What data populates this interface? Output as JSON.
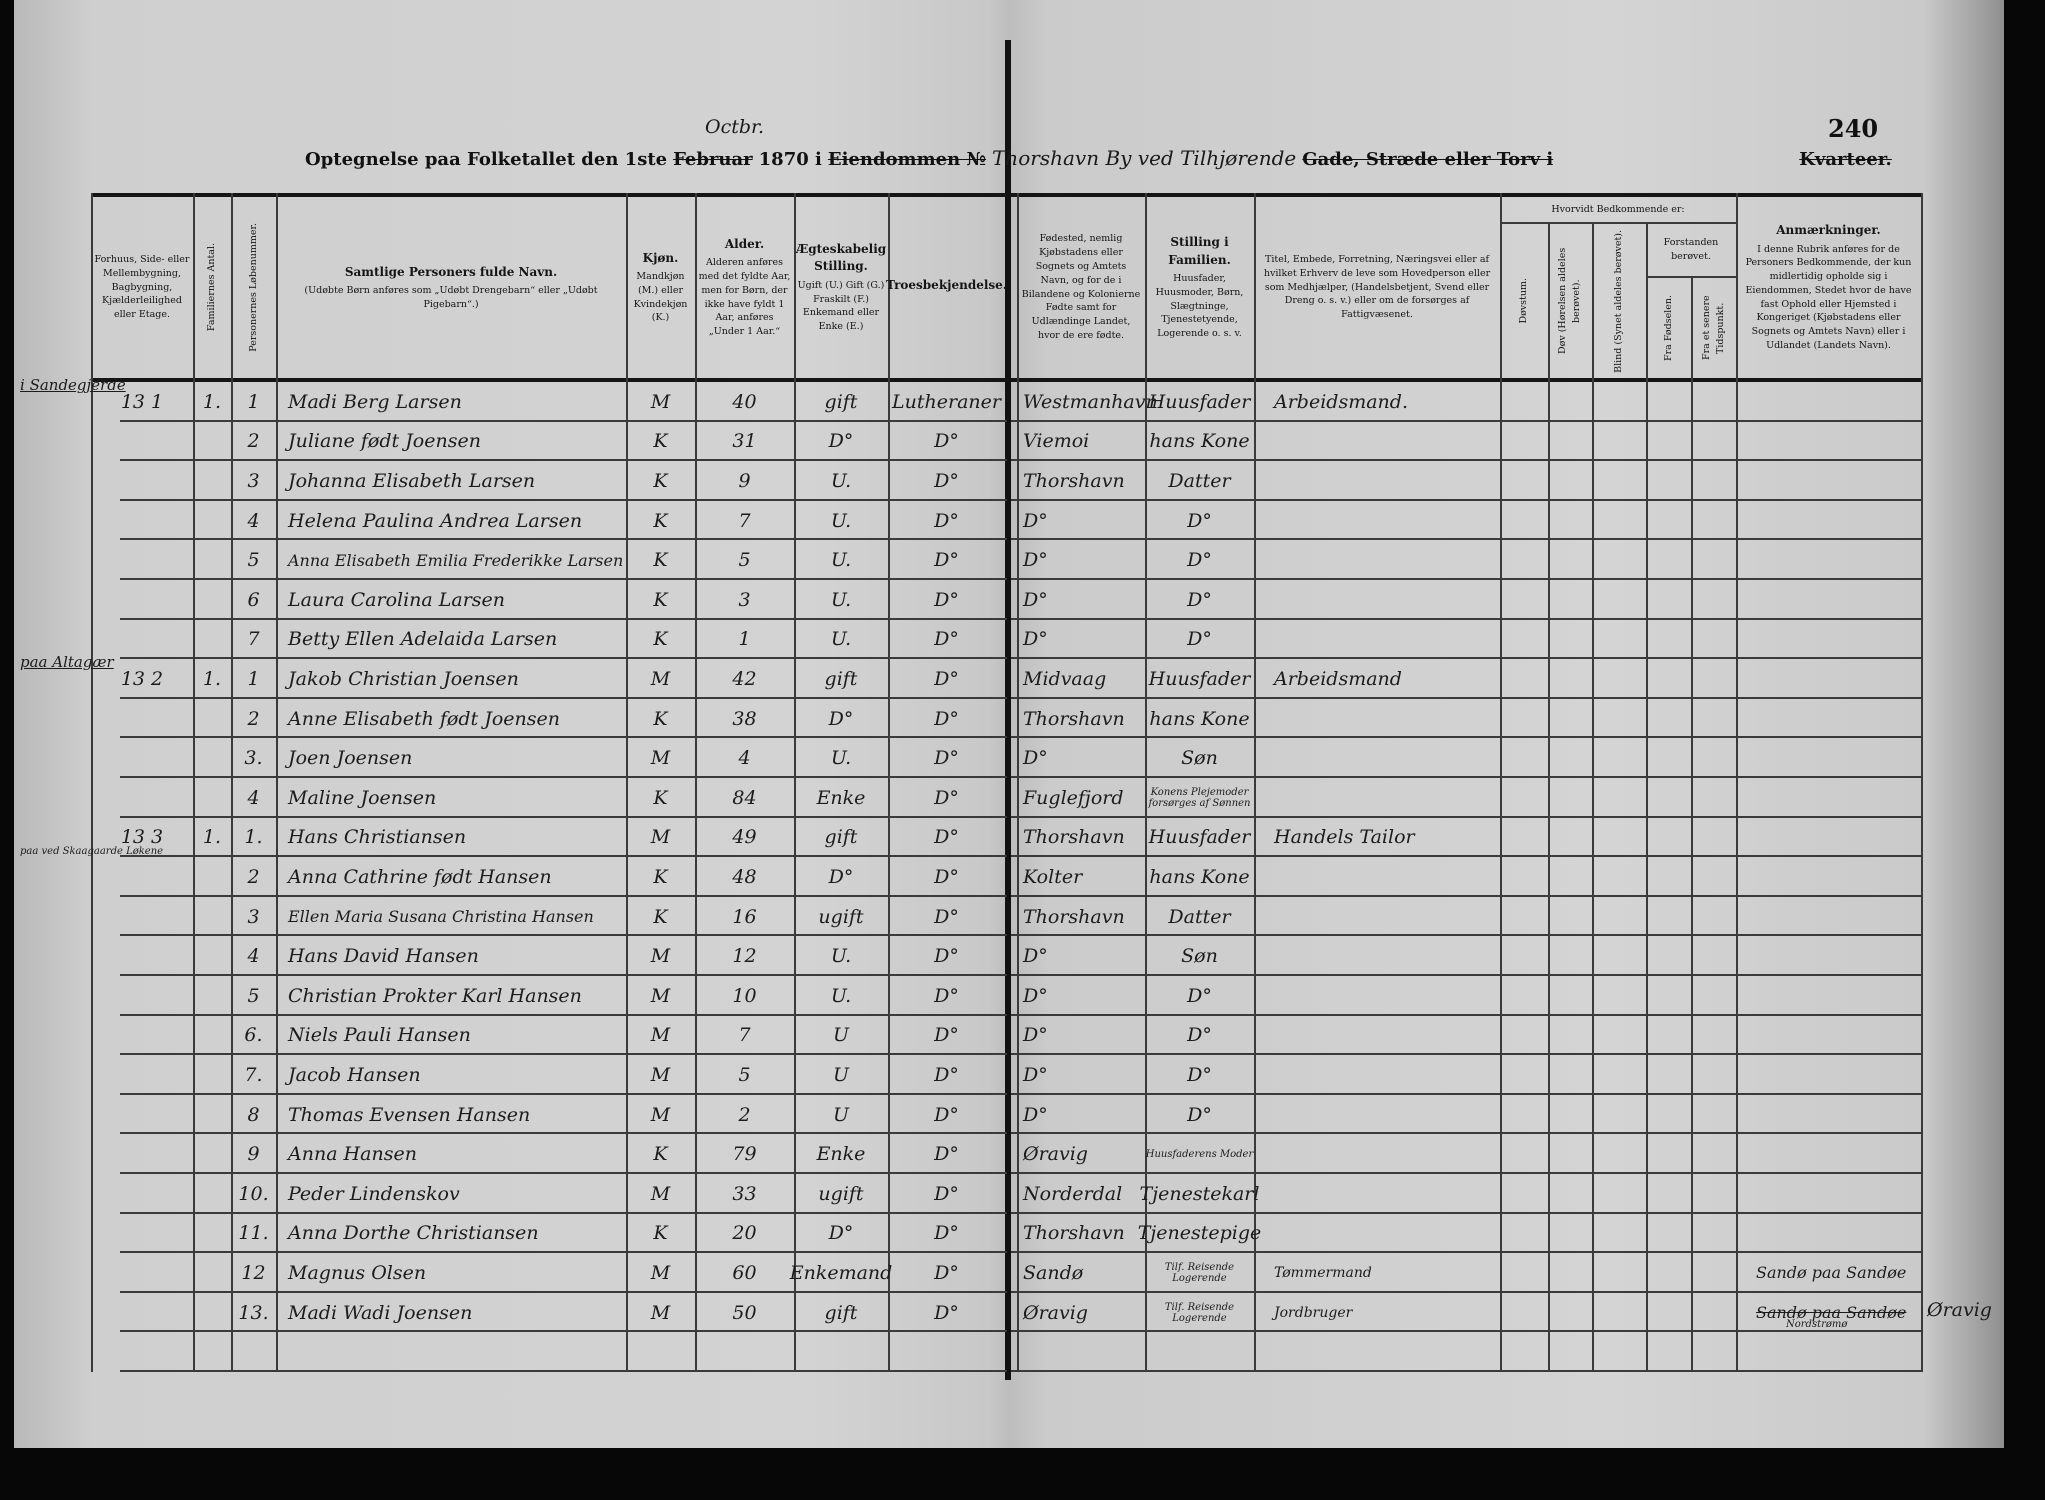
{
  "page_number": "240",
  "title": {
    "prefix": "Optegnelse paa Folketallet den 1ste",
    "month_struck": "Februar",
    "month_written": "Octbr.",
    "year_text": "1870 i",
    "property_struck": "Eiendommen №",
    "property_written": "Thorshavn By ved Tilhjørende",
    "street_label": "Gade, Stræde eller Torv i",
    "quarter_struck": "Kvarteer."
  },
  "headers": {
    "building": "Forhuus, Side- eller Mellembygning, Bagbygning, Kjælderleilighed eller Etage.",
    "families": "Familiernes Antal.",
    "person_no": "Personernes Løbenummer.",
    "name_title": "Samtlige Personers fulde Navn.",
    "name_note": "(Udøbte Børn anføres som „Udøbt Drengebarn“ eller „Udøbt Pigebarn“.)",
    "sex_title": "Kjøn.",
    "sex_note": "Mandkjøn (M.) eller Kvindekjøn (K.)",
    "age_title": "Alder.",
    "age_note": "Alderen anføres med det fyldte Aar, men for Børn, der ikke have fyldt 1 Aar, anføres „Under 1 Aar.“",
    "marital_title": "Ægteskabelig Stilling.",
    "marital_note": "Ugift (U.) Gift (G.) Fraskilt (F.) Enkemand eller Enke (E.)",
    "religion": "Troesbekjendelse.",
    "birthplace": "Fødested, nemlig Kjøbstadens eller Sognets og Amtets Navn, og for de i Bilandene og Kolonierne Fødte samt for Udlændinge Landet, hvor de ere fødte.",
    "position_title": "Stilling i Familien.",
    "position_note": "Huusfader, Huusmoder, Børn, Slægtninge, Tjenestetyende, Logerende o. s. v.",
    "occupation": "Titel, Embede, Forretning, Næringsvei eller af hvilket Erhverv de leve som Hovedperson eller som Medhjælper, (Handelsbetjent, Svend eller Dreng o. s. v.) eller om de forsørges af Fattigvæsenet.",
    "condition_group": "Hvorvidt Bedkommende er:",
    "deafmute": "Døvstum.",
    "deaf": "Døv (Hørelsen aldeles berøvet).",
    "blind": "Blind (Synet aldeles berøvet).",
    "insane_group": "Forstanden berøvet.",
    "insane_birth": "Fra Fødselen.",
    "insane_later": "Fra et senere Tidspunkt.",
    "remarks_title": "Anmærkninger.",
    "remarks_note": "I denne Rubrik anføres for de Personers Bedkommende, der kun midlertidig opholde sig i Eiendommen, Stedet hvor de have fast Ophold eller Hjemsted i Kongeriget (Kjøbstadens eller Sognets og Amtets Navn) eller i Udlandet (Landets Navn)."
  },
  "margin_notes": [
    "i Sandegjerde",
    "paa Altagær",
    "paa ved Skaagaarde Løkene"
  ],
  "rows": [
    {
      "building": "13 1",
      "families": "1.",
      "num": "1",
      "name": "Madi Berg Larsen",
      "sex": "M",
      "age": "40",
      "marital": "gift",
      "religion": "Lutheraner",
      "birthplace": "Westmanhavn",
      "position": "Huusfader",
      "occupation": "Arbeidsmand.",
      "remarks": ""
    },
    {
      "building": "",
      "families": "",
      "num": "2",
      "name": "Juliane født Joensen",
      "sex": "K",
      "age": "31",
      "marital": "D°",
      "religion": "D°",
      "birthplace": "Viemoi",
      "position": "hans Kone",
      "occupation": "",
      "remarks": ""
    },
    {
      "building": "",
      "families": "",
      "num": "3",
      "name": "Johanna Elisabeth Larsen",
      "sex": "K",
      "age": "9",
      "marital": "U.",
      "religion": "D°",
      "birthplace": "Thorshavn",
      "position": "Datter",
      "occupation": "",
      "remarks": ""
    },
    {
      "building": "",
      "families": "",
      "num": "4",
      "name": "Helena Paulina Andrea Larsen",
      "sex": "K",
      "age": "7",
      "marital": "U.",
      "religion": "D°",
      "birthplace": "D°",
      "position": "D°",
      "occupation": "",
      "remarks": ""
    },
    {
      "building": "",
      "families": "",
      "num": "5",
      "name": "Anna Elisabeth Emilia Frederikke Larsen",
      "sex": "K",
      "age": "5",
      "marital": "U.",
      "religion": "D°",
      "birthplace": "D°",
      "position": "D°",
      "occupation": "",
      "remarks": ""
    },
    {
      "building": "",
      "families": "",
      "num": "6",
      "name": "Laura Carolina Larsen",
      "sex": "K",
      "age": "3",
      "marital": "U.",
      "religion": "D°",
      "birthplace": "D°",
      "position": "D°",
      "occupation": "",
      "remarks": ""
    },
    {
      "building": "",
      "families": "",
      "num": "7",
      "name": "Betty Ellen Adelaida Larsen",
      "sex": "K",
      "age": "1",
      "marital": "U.",
      "religion": "D°",
      "birthplace": "D°",
      "position": "D°",
      "occupation": "",
      "remarks": ""
    },
    {
      "building": "13 2",
      "families": "1.",
      "num": "1",
      "name": "Jakob Christian Joensen",
      "sex": "M",
      "age": "42",
      "marital": "gift",
      "religion": "D°",
      "birthplace": "Midvaag",
      "position": "Huusfader",
      "occupation": "Arbeidsmand",
      "remarks": ""
    },
    {
      "building": "",
      "families": "",
      "num": "2",
      "name": "Anne Elisabeth født Joensen",
      "sex": "K",
      "age": "38",
      "marital": "D°",
      "religion": "D°",
      "birthplace": "Thorshavn",
      "position": "hans Kone",
      "occupation": "",
      "remarks": ""
    },
    {
      "building": "",
      "families": "",
      "num": "3.",
      "name": "Joen Joensen",
      "sex": "M",
      "age": "4",
      "marital": "U.",
      "religion": "D°",
      "birthplace": "D°",
      "position": "Søn",
      "occupation": "",
      "remarks": ""
    },
    {
      "building": "",
      "families": "",
      "num": "4",
      "name": "Maline Joensen",
      "sex": "K",
      "age": "84",
      "marital": "Enke",
      "religion": "D°",
      "birthplace": "Fuglefjord",
      "position": "Konens Plejemoder forsørges af Sønnen",
      "occupation": "",
      "remarks": ""
    },
    {
      "building": "13 3",
      "families": "1.",
      "num": "1.",
      "name": "Hans Christiansen",
      "sex": "M",
      "age": "49",
      "marital": "gift",
      "religion": "D°",
      "birthplace": "Thorshavn",
      "position": "Huusfader",
      "occupation": "Handels Tailor",
      "remarks": ""
    },
    {
      "building": "",
      "families": "",
      "num": "2",
      "name": "Anna Cathrine født Hansen",
      "sex": "K",
      "age": "48",
      "marital": "D°",
      "religion": "D°",
      "birthplace": "Kolter",
      "position": "hans Kone",
      "occupation": "",
      "remarks": ""
    },
    {
      "building": "",
      "families": "",
      "num": "3",
      "name": "Ellen Maria Susana Christina Hansen",
      "sex": "K",
      "age": "16",
      "marital": "ugift",
      "religion": "D°",
      "birthplace": "Thorshavn",
      "position": "Datter",
      "occupation": "",
      "remarks": ""
    },
    {
      "building": "",
      "families": "",
      "num": "4",
      "name": "Hans David Hansen",
      "sex": "M",
      "age": "12",
      "marital": "U.",
      "religion": "D°",
      "birthplace": "D°",
      "position": "Søn",
      "occupation": "",
      "remarks": ""
    },
    {
      "building": "",
      "families": "",
      "num": "5",
      "name": "Christian Prokter Karl Hansen",
      "sex": "M",
      "age": "10",
      "marital": "U.",
      "religion": "D°",
      "birthplace": "D°",
      "position": "D°",
      "occupation": "",
      "remarks": ""
    },
    {
      "building": "",
      "families": "",
      "num": "6.",
      "name": "Niels Pauli Hansen",
      "sex": "M",
      "age": "7",
      "marital": "U",
      "religion": "D°",
      "birthplace": "D°",
      "position": "D°",
      "occupation": "",
      "remarks": ""
    },
    {
      "building": "",
      "families": "",
      "num": "7.",
      "name": "Jacob Hansen",
      "sex": "M",
      "age": "5",
      "marital": "U",
      "religion": "D°",
      "birthplace": "D°",
      "position": "D°",
      "occupation": "",
      "remarks": ""
    },
    {
      "building": "",
      "families": "",
      "num": "8",
      "name": "Thomas Evensen Hansen",
      "sex": "M",
      "age": "2",
      "marital": "U",
      "religion": "D°",
      "birthplace": "D°",
      "position": "D°",
      "occupation": "",
      "remarks": ""
    },
    {
      "building": "",
      "families": "",
      "num": "9",
      "name": "Anna Hansen",
      "sex": "K",
      "age": "79",
      "marital": "Enke",
      "religion": "D°",
      "birthplace": "Øravig",
      "position": "Huusfaderens Moder",
      "occupation": "",
      "remarks": ""
    },
    {
      "building": "",
      "families": "",
      "num": "10.",
      "name": "Peder Lindenskov",
      "sex": "M",
      "age": "33",
      "marital": "ugift",
      "religion": "D°",
      "birthplace": "Norderdal",
      "position": "Tjenestekarl",
      "occupation": "",
      "remarks": ""
    },
    {
      "building": "",
      "families": "",
      "num": "11.",
      "name": "Anna Dorthe Christiansen",
      "sex": "K",
      "age": "20",
      "marital": "D°",
      "religion": "D°",
      "birthplace": "Thorshavn",
      "position": "Tjenestepige",
      "occupation": "",
      "remarks": ""
    },
    {
      "building": "",
      "families": "",
      "num": "12",
      "name": "Magnus Olsen",
      "sex": "M",
      "age": "60",
      "marital": "Enkemand",
      "religion": "D°",
      "birthplace": "Sandø",
      "position": "Tilf. Reisende Logerende",
      "occupation": "Tømmermand",
      "remarks": "Sandø paa Sandøe"
    },
    {
      "building": "",
      "families": "",
      "num": "13.",
      "name": "Madi Wadi Joensen",
      "sex": "M",
      "age": "50",
      "marital": "gift",
      "religion": "D°",
      "birthplace": "Øravig",
      "position": "Tilf. Reisende Logerende",
      "occupation": "Jordbruger",
      "remarks": "Sandø paa Sandøe",
      "remarks_struck": true,
      "remarks_sub": "Nordstrømø",
      "remarks_extra": "Øravig"
    }
  ]
}
